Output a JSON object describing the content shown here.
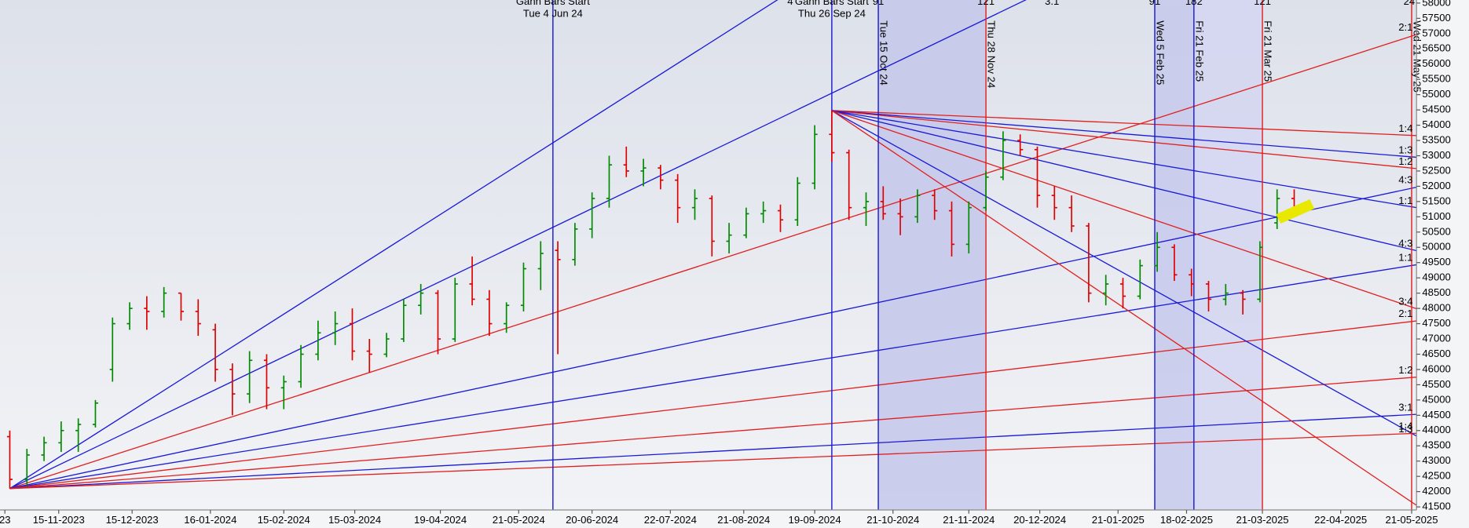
{
  "chart_data": {
    "type": "ohlc",
    "x": [
      "26-10-2023",
      "02-11-2023",
      "09-11-2023",
      "16-11-2023",
      "23-11-2023",
      "30-11-2023",
      "07-12-2023",
      "14-12-2023",
      "21-12-2023",
      "28-12-2023",
      "04-01-2024",
      "11-01-2024",
      "18-01-2024",
      "25-01-2024",
      "01-02-2024",
      "08-02-2024",
      "15-02-2024",
      "22-02-2024",
      "29-02-2024",
      "07-03-2024",
      "14-03-2024",
      "21-03-2024",
      "28-03-2024",
      "04-04-2024",
      "11-04-2024",
      "18-04-2024",
      "25-04-2024",
      "02-05-2024",
      "09-05-2024",
      "16-05-2024",
      "23-05-2024",
      "30-05-2024",
      "06-06-2024",
      "13-06-2024",
      "20-06-2024",
      "27-06-2024",
      "04-07-2024",
      "11-07-2024",
      "18-07-2024",
      "25-07-2024",
      "01-08-2024",
      "08-08-2024",
      "15-08-2024",
      "22-08-2024",
      "29-08-2024",
      "05-09-2024",
      "12-09-2024",
      "19-09-2024",
      "26-09-2024",
      "03-10-2024",
      "10-10-2024",
      "17-10-2024",
      "24-10-2024",
      "31-10-2024",
      "07-11-2024",
      "14-11-2024",
      "21-11-2024",
      "28-11-2024",
      "05-12-2024",
      "12-12-2024",
      "19-12-2024",
      "26-12-2024",
      "02-01-2025",
      "09-01-2025",
      "16-01-2025",
      "23-01-2025",
      "30-01-2025",
      "06-02-2025",
      "13-02-2025",
      "20-02-2025",
      "27-02-2025",
      "06-03-2025",
      "13-03-2025",
      "20-03-2025",
      "27-03-2025",
      "03-04-2025"
    ],
    "open": [
      43800,
      42400,
      43200,
      43600,
      44000,
      44200,
      46000,
      47500,
      48000,
      47900,
      48500,
      47900,
      47300,
      46000,
      45200,
      46300,
      45400,
      45600,
      46500,
      47200,
      47500,
      46600,
      46500,
      47000,
      48100,
      48500,
      47000,
      48800,
      48300,
      47500,
      48100,
      49300,
      49900,
      49600,
      50600,
      51600,
      52700,
      52500,
      52600,
      52200,
      51300,
      51600,
      50200,
      50400,
      51100,
      51200,
      50900,
      52100,
      53700,
      53100,
      51300,
      51500,
      51100,
      51000,
      51700,
      51200,
      50100,
      51300,
      52300,
      53500,
      53200,
      51700,
      51300,
      50700,
      48500,
      48800,
      48400,
      49400,
      50000,
      49100,
      48800,
      48300,
      48500,
      48300,
      50800,
      51600
    ],
    "high": [
      44000,
      43400,
      43800,
      44300,
      44400,
      45000,
      47700,
      48200,
      48400,
      48700,
      48500,
      48300,
      47500,
      46200,
      46600,
      46500,
      45800,
      46800,
      47600,
      47900,
      48000,
      47000,
      47200,
      48300,
      48800,
      48600,
      49000,
      49700,
      48600,
      48200,
      49500,
      50200,
      50200,
      50800,
      51800,
      53000,
      53300,
      52900,
      52700,
      52400,
      51900,
      51700,
      50800,
      51300,
      51500,
      51400,
      52300,
      54000,
      54480,
      53200,
      51800,
      52000,
      51600,
      51900,
      51900,
      51500,
      51500,
      52500,
      53800,
      53700,
      53300,
      52000,
      51700,
      50800,
      49100,
      49000,
      49600,
      50500,
      50100,
      49300,
      48900,
      48800,
      48600,
      50200,
      51900,
      51900
    ],
    "low": [
      42100,
      42200,
      43000,
      43300,
      43300,
      44100,
      45600,
      47300,
      47300,
      47700,
      47600,
      47100,
      45600,
      44500,
      44900,
      44700,
      44700,
      45400,
      46300,
      46800,
      46300,
      45900,
      46400,
      46900,
      47800,
      46500,
      46900,
      48100,
      47100,
      47200,
      47900,
      48600,
      46500,
      49400,
      50300,
      51300,
      52300,
      52000,
      51900,
      50800,
      50900,
      49700,
      49800,
      50300,
      50800,
      50500,
      50700,
      51900,
      52800,
      50900,
      50700,
      50900,
      50400,
      50800,
      50900,
      49700,
      49800,
      51200,
      52200,
      53000,
      51300,
      50900,
      50500,
      48200,
      48100,
      48000,
      48300,
      49200,
      48900,
      48400,
      47900,
      48100,
      47800,
      48200,
      50600,
      51000
    ],
    "close": [
      42400,
      43200,
      43600,
      44000,
      44200,
      44900,
      47500,
      48000,
      47900,
      48500,
      47900,
      47500,
      46000,
      45200,
      46300,
      45400,
      45600,
      46500,
      47200,
      47500,
      46600,
      46500,
      47000,
      48100,
      48500,
      47000,
      48800,
      48300,
      47500,
      48100,
      49300,
      49800,
      49600,
      50600,
      51600,
      52700,
      52500,
      52600,
      52200,
      51300,
      51600,
      50200,
      50400,
      51100,
      51200,
      50900,
      52100,
      53700,
      53100,
      51300,
      51500,
      51100,
      51000,
      51700,
      51200,
      50100,
      51300,
      52300,
      53500,
      53200,
      51700,
      51300,
      50700,
      48500,
      48800,
      48400,
      49400,
      50000,
      49100,
      48800,
      48300,
      48500,
      48300,
      50000,
      51600,
      51300
    ],
    "up_color": "#008a00",
    "down_color": "#e00000",
    "xlim": [
      "22-10-2023",
      "23-05-2025"
    ],
    "xticks": [
      {
        "value": "24-10-2023",
        "label": "23"
      },
      "15-11-2023",
      "15-12-2023",
      "16-01-2024",
      "15-02-2024",
      "15-03-2024",
      "19-04-2024",
      "21-05-2024",
      "20-06-2024",
      "22-07-2024",
      "21-08-2024",
      "19-09-2024",
      "21-10-2024",
      "21-11-2024",
      "20-12-2024",
      "21-01-2025",
      "18-02-2025",
      "21-03-2025",
      "22-04-2025",
      "21-05-2025"
    ],
    "ylim": [
      41400,
      58100
    ],
    "yticks": [
      41500,
      42000,
      42500,
      43000,
      43500,
      44000,
      44500,
      45000,
      45500,
      46000,
      46500,
      47000,
      47500,
      48000,
      48500,
      49000,
      49500,
      50000,
      50500,
      51000,
      51500,
      52000,
      52500,
      53000,
      53500,
      54000,
      54500,
      55000,
      55500,
      56000,
      56500,
      57000,
      57500,
      58000
    ],
    "vlines": [
      {
        "x": "04-06-2024",
        "color": "#1a1ad6",
        "title": "Gann Bars Start",
        "label": "Tue 4 Jun 24"
      },
      {
        "x": "26-09-2024",
        "color": "#1a1ad6",
        "title": "Gann Bars Start",
        "label": "Thu 26 Sep 24"
      },
      {
        "x": "15-10-2024",
        "color": "#1a1ad6",
        "label": "Tue 15 Oct 24",
        "count": "91"
      },
      {
        "x": "28-11-2024",
        "color": "#e02020",
        "label": "Thu 28 Nov 24",
        "count": "121"
      },
      {
        "x": "05-02-2025",
        "color": "#1a1ad6",
        "label": "Wed 5 Feb 25",
        "count": "91"
      },
      {
        "x": "21-02-2025",
        "color": "#1a1ad6",
        "label": "Fri 21 Feb 25",
        "count": "182"
      },
      {
        "x": "21-03-2025",
        "color": "#e02020",
        "label": "Fri 21 Mar 25",
        "count": "121"
      },
      {
        "x": "21-05-2025",
        "color": "#e02020",
        "label": "Wed 21 May 25"
      }
    ],
    "top_labels": [
      {
        "text": "4",
        "x": "09-09-2024"
      },
      {
        "text": "3.1",
        "x": "25-12-2024"
      },
      {
        "text": "24",
        "x": "20-05-2025"
      }
    ],
    "fans": [
      {
        "color": "#1a1ad6",
        "from": {
          "x": "26-10-2023",
          "y": 42100
        },
        "to": {
          "x": "23-05-2025",
          "y": 71430
        }
      },
      {
        "color": "#1a1ad6",
        "from": {
          "x": "26-10-2023",
          "y": 42100
        },
        "to": {
          "x": "23-05-2025",
          "y": 64260
        }
      },
      {
        "color": "#e02020",
        "from": {
          "x": "26-10-2023",
          "y": 42100
        },
        "to": {
          "x": "23-05-2025",
          "y": 56970
        },
        "label": "2:1"
      },
      {
        "color": "#1a1ad6",
        "from": {
          "x": "26-10-2023",
          "y": 42100
        },
        "to": {
          "x": "23-05-2025",
          "y": 51970
        },
        "label": "4:3"
      },
      {
        "color": "#1a1ad6",
        "from": {
          "x": "26-10-2023",
          "y": 42100
        },
        "to": {
          "x": "23-05-2025",
          "y": 49430
        },
        "label": "1:1"
      },
      {
        "color": "#e02020",
        "from": {
          "x": "26-10-2023",
          "y": 42100
        },
        "to": {
          "x": "23-05-2025",
          "y": 47590
        },
        "label": "2:1"
      },
      {
        "color": "#e02020",
        "from": {
          "x": "26-10-2023",
          "y": 42100
        },
        "to": {
          "x": "23-05-2025",
          "y": 45750
        },
        "label": "1:2"
      },
      {
        "color": "#1a1ad6",
        "from": {
          "x": "26-10-2023",
          "y": 42100
        },
        "to": {
          "x": "23-05-2025",
          "y": 44530
        },
        "label": "3:1"
      },
      {
        "color": "#e02020",
        "from": {
          "x": "26-10-2023",
          "y": 42100
        },
        "to": {
          "x": "23-05-2025",
          "y": 43910
        },
        "label": "1:4"
      },
      {
        "color": "#e02020",
        "from": {
          "x": "26-09-2024",
          "y": 54480
        },
        "to": {
          "x": "23-05-2025",
          "y": 53660
        },
        "label": "1:4"
      },
      {
        "color": "#1a1ad6",
        "from": {
          "x": "26-09-2024",
          "y": 54480
        },
        "to": {
          "x": "23-05-2025",
          "y": 52950
        },
        "label": "1:3"
      },
      {
        "color": "#e02020",
        "from": {
          "x": "26-09-2024",
          "y": 54480
        },
        "to": {
          "x": "23-05-2025",
          "y": 52580
        },
        "label": "1:2"
      },
      {
        "color": "#1a1ad6",
        "from": {
          "x": "26-09-2024",
          "y": 54480
        },
        "to": {
          "x": "23-05-2025",
          "y": 51300
        },
        "label": "1:1"
      },
      {
        "color": "#1a1ad6",
        "from": {
          "x": "26-09-2024",
          "y": 54480
        },
        "to": {
          "x": "23-05-2025",
          "y": 49890
        },
        "label": "4:3"
      },
      {
        "color": "#e02020",
        "from": {
          "x": "26-09-2024",
          "y": 54480
        },
        "to": {
          "x": "23-05-2025",
          "y": 47990
        },
        "label": "3:4"
      },
      {
        "color": "#1a1ad6",
        "from": {
          "x": "26-09-2024",
          "y": 54480
        },
        "to": {
          "x": "23-05-2025",
          "y": 43820
        },
        "label": "1:3"
      },
      {
        "color": "#e02020",
        "from": {
          "x": "26-09-2024",
          "y": 54480
        },
        "to": {
          "x": "23-05-2025",
          "y": 41550
        }
      }
    ]
  }
}
